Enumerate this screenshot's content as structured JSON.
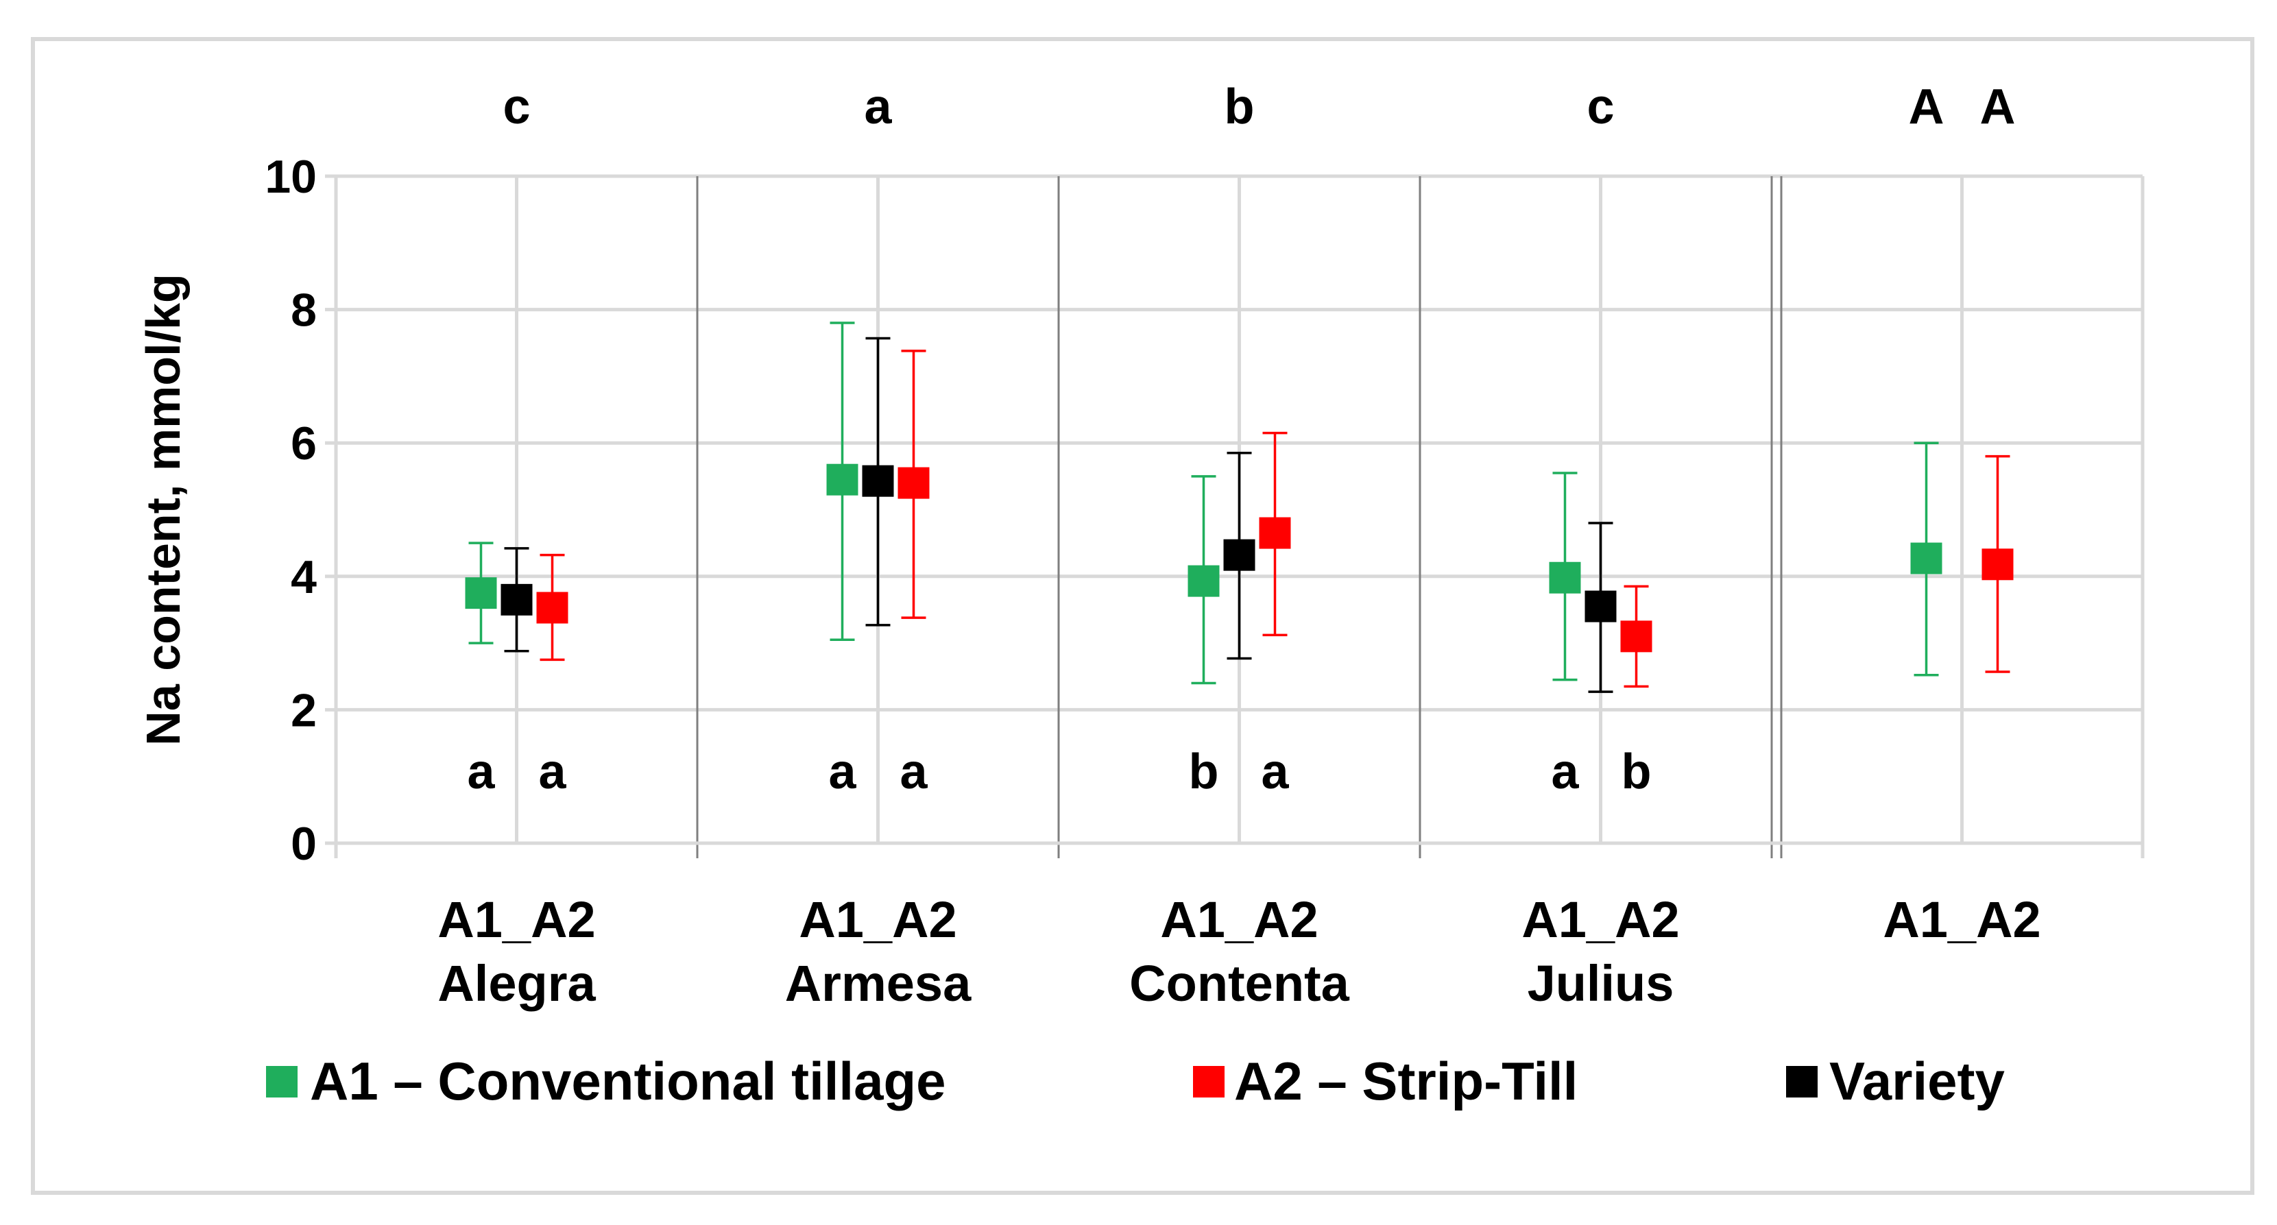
{
  "chart_data": {
    "type": "scatter",
    "ylabel": "Na content, mmol/kg",
    "ylim": [
      0,
      10
    ],
    "yticks": [
      "0",
      "2",
      "4",
      "6",
      "8",
      "10"
    ],
    "grid": true,
    "groups": [
      {
        "label_line1": "A1_A2",
        "label_line2": "Alegra",
        "top_letter": "c",
        "bottom_letters": [
          "a",
          "a"
        ]
      },
      {
        "label_line1": "A1_A2",
        "label_line2": "Armesa",
        "top_letter": "a",
        "bottom_letters": [
          "a",
          "a"
        ]
      },
      {
        "label_line1": "A1_A2",
        "label_line2": "Contenta",
        "top_letter": "b",
        "bottom_letters": [
          "b",
          "a"
        ]
      },
      {
        "label_line1": "A1_A2",
        "label_line2": "Julius",
        "top_letter": "c",
        "bottom_letters": [
          "a",
          "b"
        ]
      },
      {
        "label_line1": "A1_A2",
        "label_line2": "",
        "top_letters": [
          "A",
          "A"
        ]
      }
    ],
    "series": [
      {
        "name": "A1 – Conventional tillage",
        "color": "#1fae5c",
        "points": [
          {
            "group": 0,
            "mean": 3.75,
            "low": 3.0,
            "high": 4.5
          },
          {
            "group": 1,
            "mean": 5.45,
            "low": 3.05,
            "high": 7.8
          },
          {
            "group": 2,
            "mean": 3.93,
            "low": 2.4,
            "high": 5.5
          },
          {
            "group": 3,
            "mean": 3.98,
            "low": 2.45,
            "high": 5.55
          },
          {
            "group": 4,
            "mean": 4.27,
            "low": 2.52,
            "high": 6.0
          }
        ]
      },
      {
        "name": "A2 – Strip-Till",
        "color": "#ff0000",
        "points": [
          {
            "group": 0,
            "mean": 3.53,
            "low": 2.75,
            "high": 4.32
          },
          {
            "group": 1,
            "mean": 5.4,
            "low": 3.38,
            "high": 7.38
          },
          {
            "group": 2,
            "mean": 4.65,
            "low": 3.12,
            "high": 6.15
          },
          {
            "group": 3,
            "mean": 3.1,
            "low": 2.35,
            "high": 3.85
          },
          {
            "group": 4,
            "mean": 4.18,
            "low": 2.57,
            "high": 5.8
          }
        ]
      },
      {
        "name": "Variety",
        "color": "#000000",
        "points": [
          {
            "group": 0,
            "mean": 3.65,
            "low": 2.88,
            "high": 4.42
          },
          {
            "group": 1,
            "mean": 5.43,
            "low": 3.27,
            "high": 7.57
          },
          {
            "group": 2,
            "mean": 4.32,
            "low": 2.77,
            "high": 5.85
          },
          {
            "group": 3,
            "mean": 3.55,
            "low": 2.27,
            "high": 4.8
          }
        ]
      }
    ]
  }
}
